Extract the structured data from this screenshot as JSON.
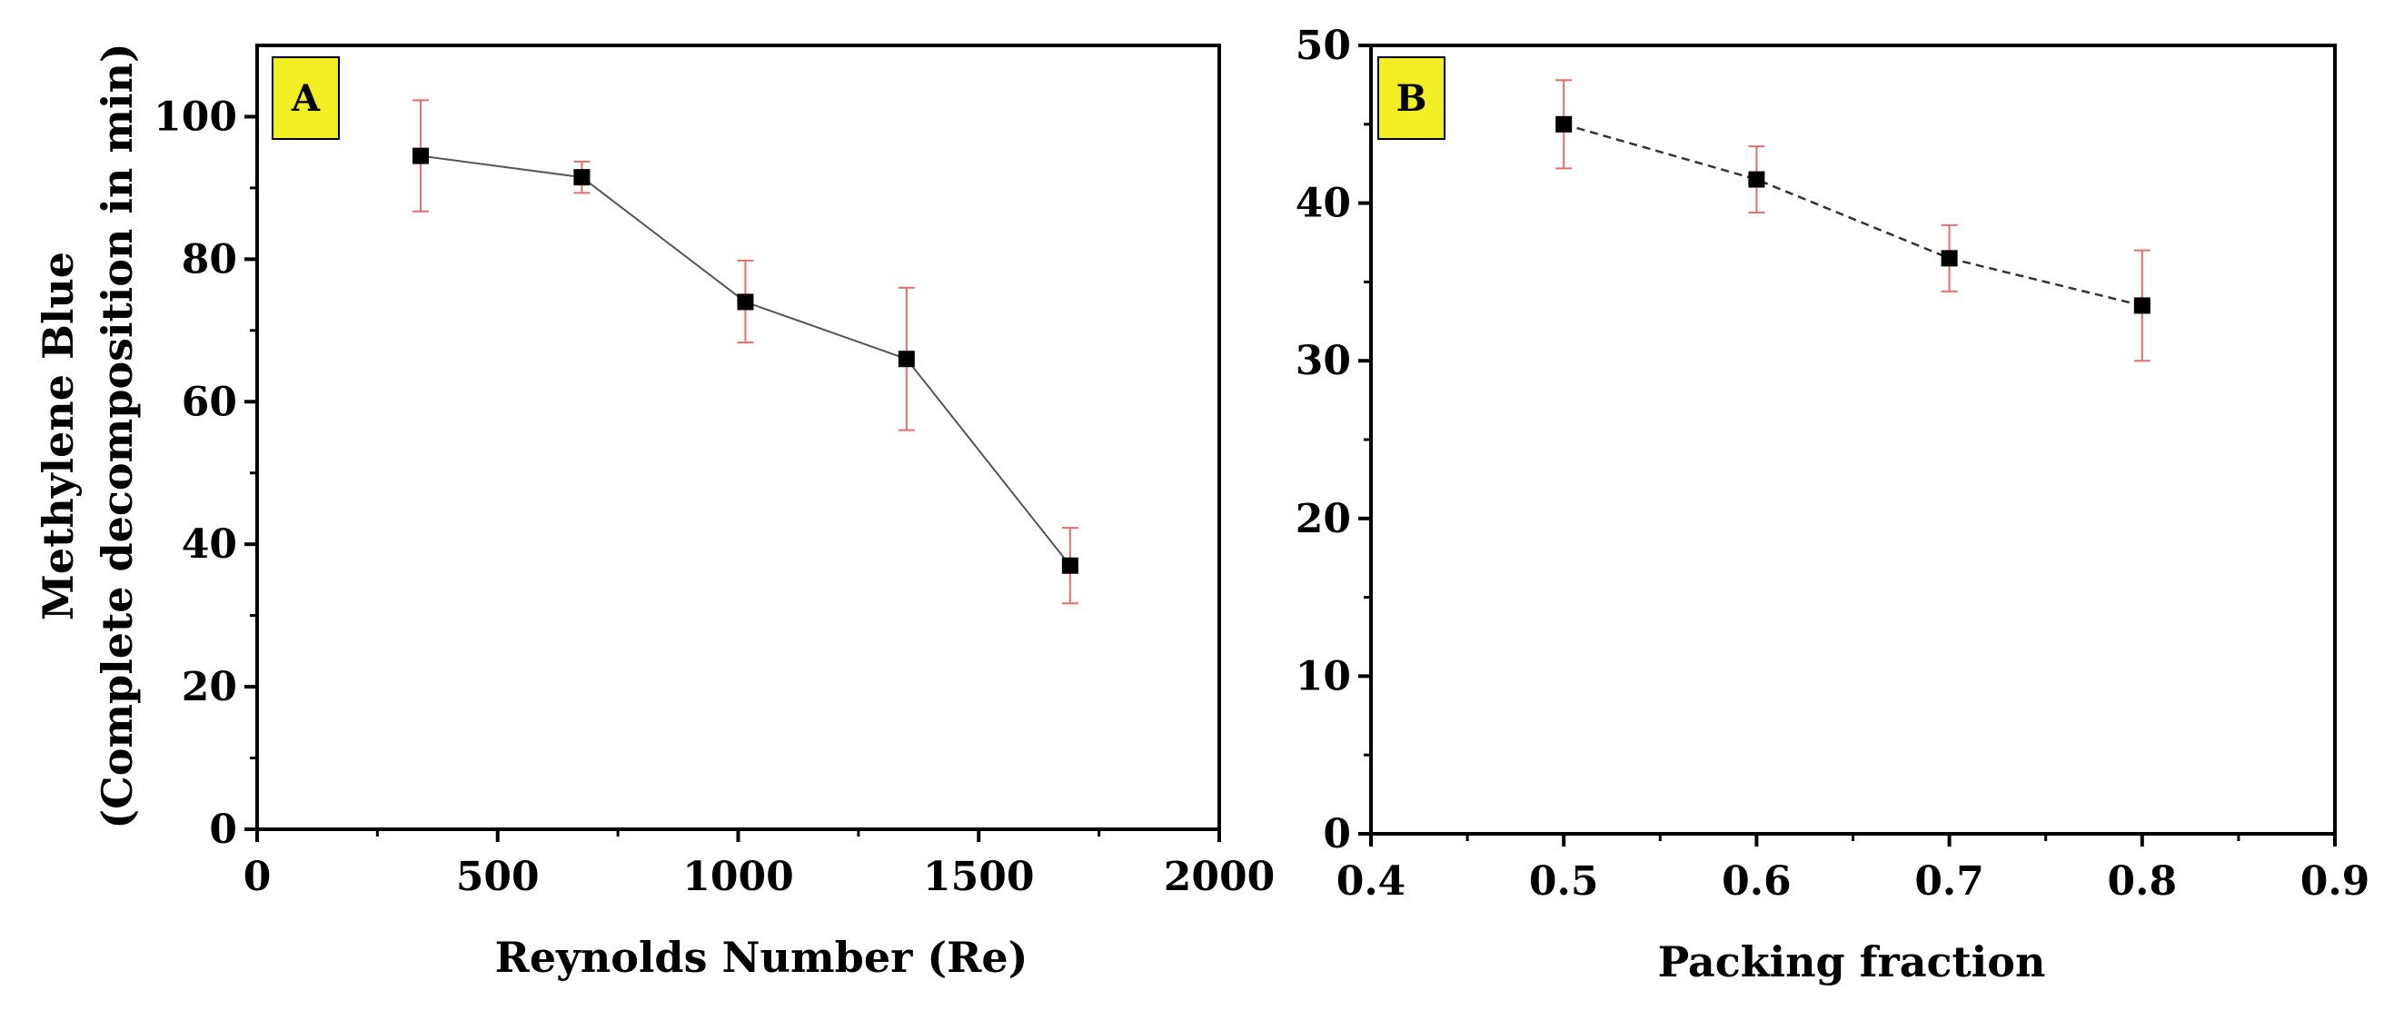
{
  "chart_data": [
    {
      "type": "line",
      "panel_label": "A",
      "panel_label_color": "#f2ee24",
      "xlabel": "Reynolds Number (Re)",
      "ylabel": [
        "Methylene Blue",
        "(Complete decomposition in min)"
      ],
      "xlim": [
        0,
        2000
      ],
      "ylim": [
        0,
        110
      ],
      "xticks": [
        0,
        500,
        1000,
        1500,
        2000
      ],
      "yticks": [
        0,
        20,
        40,
        60,
        80,
        100
      ],
      "grid": false,
      "line_style": "solid",
      "marker": "square",
      "errorbar_color": "#e07070",
      "series": [
        {
          "x": [
            340,
            675,
            1015,
            1350,
            1690
          ],
          "y": [
            94.5,
            91.5,
            74,
            66,
            37
          ],
          "err_high": [
            102.3,
            93.7,
            79.8,
            76,
            42.3
          ],
          "err_low": [
            86.7,
            89.3,
            68.3,
            56,
            31.7
          ]
        }
      ]
    },
    {
      "type": "line",
      "panel_label": "B",
      "panel_label_color": "#f2ee24",
      "xlabel": "Packing fraction",
      "ylabel": [],
      "xlim": [
        0.4,
        0.9
      ],
      "ylim": [
        0,
        50
      ],
      "xticks": [
        0.4,
        0.5,
        0.6,
        0.7,
        0.8,
        0.9
      ],
      "yticks": [
        0,
        10,
        20,
        30,
        40,
        50
      ],
      "grid": false,
      "line_style": "dashed",
      "marker": "square",
      "errorbar_color": "#e07070",
      "series": [
        {
          "x": [
            0.5,
            0.6,
            0.7,
            0.8
          ],
          "y": [
            45,
            41.5,
            36.5,
            33.5
          ],
          "err_high": [
            47.8,
            43.6,
            38.6,
            37
          ],
          "err_low": [
            42.2,
            39.4,
            34.4,
            30
          ]
        }
      ]
    }
  ]
}
